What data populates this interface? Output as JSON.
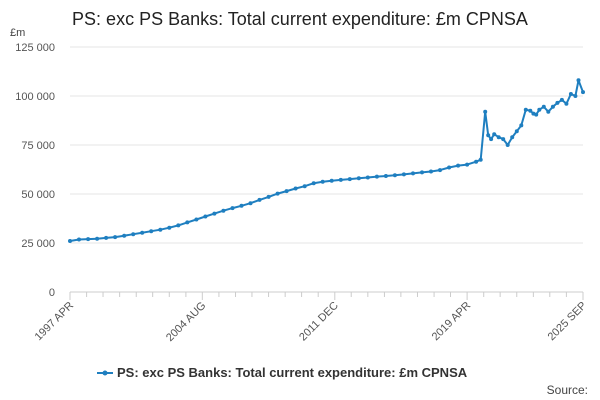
{
  "chart_data": {
    "type": "line",
    "title": "PS: exc PS Banks: Total current expenditure: £m CPNSA",
    "ylabel": "£m",
    "xlabel": "",
    "ylim": [
      0,
      125000
    ],
    "yticks": [
      0,
      25000,
      50000,
      75000,
      100000,
      125000
    ],
    "ytick_labels": [
      "0",
      "25 000",
      "50 000",
      "75 000",
      "100 000",
      "125 000"
    ],
    "xlim": [
      1997.25,
      2025.67
    ],
    "xticks": [
      1997.25,
      2004.58,
      2011.92,
      2019.25,
      2025.67
    ],
    "xtick_labels": [
      "1997 APR",
      "2004 AUG",
      "2011 DEC",
      "2019 APR",
      "2025 SEP"
    ],
    "minor_xticks": [
      1998.17,
      1999.08,
      2000.0,
      2000.92,
      2001.83,
      2002.75,
      2003.67,
      2005.5,
      2006.42,
      2007.33,
      2008.25,
      2009.17,
      2010.08,
      2011.0,
      2012.83,
      2013.75,
      2014.67,
      2015.58,
      2016.5,
      2017.42,
      2018.33,
      2020.17,
      2021.08,
      2022.0,
      2022.92,
      2023.83,
      2024.75
    ],
    "grid": true,
    "legend_position": "bottom-center",
    "color": "#1f7fc0",
    "series": [
      {
        "name": "PS: exc PS Banks: Total current expenditure: £m CPNSA",
        "x": [
          1997.25,
          1997.75,
          1998.25,
          1998.75,
          1999.25,
          1999.75,
          2000.25,
          2000.75,
          2001.25,
          2001.75,
          2002.25,
          2002.75,
          2003.25,
          2003.75,
          2004.25,
          2004.75,
          2005.25,
          2005.75,
          2006.25,
          2006.75,
          2007.25,
          2007.75,
          2008.25,
          2008.75,
          2009.25,
          2009.75,
          2010.25,
          2010.75,
          2011.25,
          2011.75,
          2012.25,
          2012.75,
          2013.25,
          2013.75,
          2014.25,
          2014.75,
          2015.25,
          2015.75,
          2016.25,
          2016.75,
          2017.25,
          2017.75,
          2018.25,
          2018.75,
          2019.25,
          2019.75,
          2020.0,
          2020.25,
          2020.42,
          2020.58,
          2020.75,
          2021.0,
          2021.25,
          2021.5,
          2021.75,
          2022.0,
          2022.25,
          2022.5,
          2022.75,
          2022.92,
          2023.08,
          2023.25,
          2023.5,
          2023.75,
          2024.0,
          2024.25,
          2024.5,
          2024.75,
          2025.0,
          2025.25,
          2025.42,
          2025.67
        ],
        "values": [
          26000,
          26800,
          27000,
          27200,
          27600,
          28000,
          28700,
          29500,
          30200,
          31000,
          31800,
          32800,
          34000,
          35500,
          37000,
          38500,
          40000,
          41500,
          42800,
          44000,
          45300,
          47000,
          48500,
          50200,
          51500,
          52800,
          54000,
          55500,
          56200,
          56800,
          57200,
          57600,
          58000,
          58400,
          58900,
          59200,
          59600,
          60000,
          60500,
          61000,
          61500,
          62200,
          63500,
          64500,
          65000,
          66500,
          67500,
          92000,
          80000,
          78000,
          80500,
          79000,
          78000,
          75000,
          79000,
          82000,
          85000,
          93000,
          92500,
          91000,
          90500,
          93000,
          94500,
          92000,
          94500,
          96500,
          98000,
          96000,
          101000,
          100000,
          108000,
          102000
        ]
      }
    ],
    "legend": [
      "PS: exc PS Banks: Total current expenditure: £m CPNSA"
    ],
    "source_label": "Source:"
  }
}
